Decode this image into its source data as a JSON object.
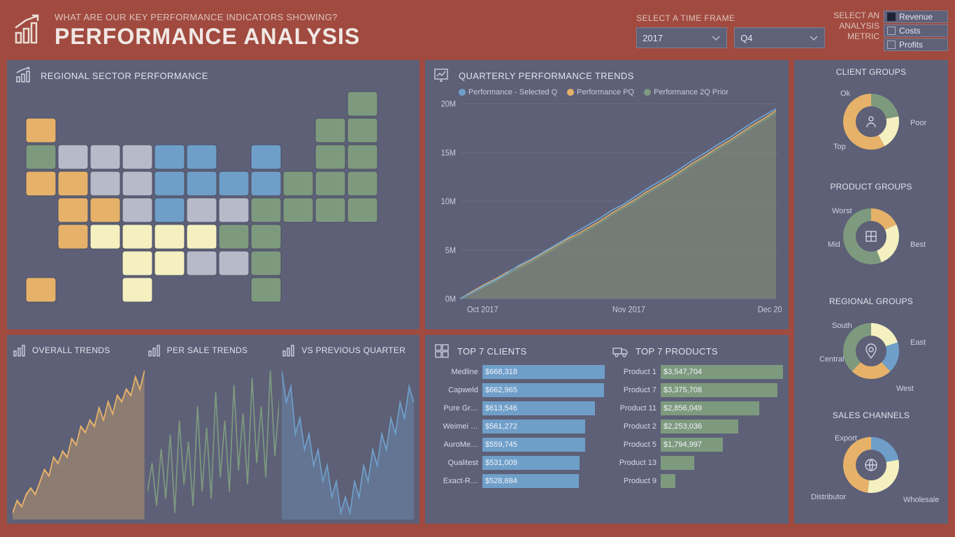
{
  "colors": {
    "page_bg": "#a14a3f",
    "panel_bg": "#5d6077",
    "text": "#e2e3ee",
    "blue": "#6f9fc9",
    "green": "#7d9a7e",
    "orange": "#e6b26a",
    "cream": "#f4f0c0",
    "gray": "#b7bac8"
  },
  "header": {
    "subtitle": "WHAT ARE OUR KEY PERFORMANCE INDICATORS SHOWING?",
    "title": "PERFORMANCE ANALYSIS",
    "timeframe_label": "SELECT A TIME FRAME",
    "year_value": "2017",
    "quarter_value": "Q4",
    "metric_label_l1": "SELECT AN",
    "metric_label_l2": "ANALYSIS",
    "metric_label_l3": "METRIC",
    "metrics": [
      {
        "label": "Revenue",
        "selected": true
      },
      {
        "label": "Costs",
        "selected": false
      },
      {
        "label": "Profits",
        "selected": false
      }
    ]
  },
  "map": {
    "title": "REGIONAL SECTOR PERFORMANCE",
    "fill_default": "#b7bac8",
    "states": {
      "blue": [
        "MN",
        "IA",
        "MO",
        "WI",
        "IL",
        "IN",
        "MI",
        "OH"
      ],
      "green": [
        "ME",
        "NH",
        "VT",
        "MA",
        "RI",
        "CT",
        "NY",
        "NJ",
        "PA",
        "DE",
        "MD",
        "VA",
        "NC",
        "SC",
        "GA",
        "FL",
        "OR"
      ],
      "orange": [
        "WA",
        "CA",
        "NV",
        "UT",
        "CO",
        "AZ",
        "AK"
      ],
      "cream": [
        "NM",
        "TX",
        "OK",
        "KS",
        "AR",
        "LA",
        "TN"
      ]
    }
  },
  "trends": {
    "title": "QUARTERLY PERFORMANCE TRENDS",
    "legend": [
      {
        "label": "Performance - Selected Q",
        "color": "#6f9fc9"
      },
      {
        "label": "Performance PQ",
        "color": "#e6b26a"
      },
      {
        "label": "Performance 2Q Prior",
        "color": "#7d9a7e"
      }
    ],
    "y_ticks": [
      "0M",
      "5M",
      "10M",
      "15M",
      "20M"
    ],
    "y_max": 20,
    "x_labels": [
      "Oct 2017",
      "Nov 2017",
      "Dec 2017"
    ],
    "series_selected": [
      0,
      0.6,
      1.3,
      1.9,
      2.6,
      3.4,
      4.0,
      4.7,
      5.4,
      6.1,
      6.9,
      7.6,
      8.3,
      9.1,
      9.7,
      10.5,
      11.3,
      12.0,
      12.7,
      13.5,
      14.3,
      15.0,
      15.8,
      16.5,
      17.3,
      18.1,
      18.8,
      19.5
    ],
    "series_pq": [
      0,
      0.7,
      1.4,
      2.0,
      2.7,
      3.3,
      3.9,
      4.6,
      5.3,
      6.0,
      6.6,
      7.3,
      8.0,
      8.8,
      9.5,
      10.2,
      11.0,
      11.7,
      12.4,
      13.2,
      14.0,
      14.7,
      15.5,
      16.2,
      17.0,
      17.8,
      18.5,
      19.3
    ],
    "series_2qp": [
      0,
      0.6,
      1.2,
      1.8,
      2.5,
      3.1,
      3.7,
      4.4,
      5.1,
      5.8,
      6.4,
      7.1,
      7.8,
      8.6,
      9.3,
      10.0,
      10.8,
      11.5,
      12.2,
      13.0,
      13.8,
      14.5,
      15.3,
      16.0,
      16.8,
      17.6,
      18.3,
      19.1
    ],
    "area_fill": "#889479",
    "area_opacity": 0.55
  },
  "donuts": [
    {
      "title": "CLIENT GROUPS",
      "icon": "people",
      "segments": [
        {
          "label": "Ok",
          "value": 22,
          "color": "#7d9a7e",
          "lx": -44,
          "ly": -46
        },
        {
          "label": "Top",
          "value": 20,
          "color": "#f4f0c0",
          "lx": -54,
          "ly": 30
        },
        {
          "label": "Poor",
          "value": 58,
          "color": "#e6b26a",
          "lx": 56,
          "ly": -4
        }
      ]
    },
    {
      "title": "PRODUCT GROUPS",
      "icon": "boxes",
      "segments": [
        {
          "label": "Worst",
          "value": 18,
          "color": "#e6b26a",
          "lx": -56,
          "ly": -42
        },
        {
          "label": "Mid",
          "value": 26,
          "color": "#f4f0c0",
          "lx": -62,
          "ly": 6
        },
        {
          "label": "Best",
          "value": 56,
          "color": "#7d9a7e",
          "lx": 56,
          "ly": 6
        }
      ]
    },
    {
      "title": "REGIONAL GROUPS",
      "icon": "pin",
      "segments": [
        {
          "label": "South",
          "value": 20,
          "color": "#f4f0c0",
          "lx": -56,
          "ly": -42
        },
        {
          "label": "Central",
          "value": 18,
          "color": "#6f9fc9",
          "lx": -74,
          "ly": 6
        },
        {
          "label": "West",
          "value": 24,
          "color": "#e6b26a",
          "lx": 36,
          "ly": 48
        },
        {
          "label": "East",
          "value": 38,
          "color": "#7d9a7e",
          "lx": 56,
          "ly": -18
        }
      ]
    },
    {
      "title": "SALES CHANNELS",
      "icon": "globe",
      "segments": [
        {
          "label": "Export",
          "value": 22,
          "color": "#6f9fc9",
          "lx": -52,
          "ly": -44
        },
        {
          "label": "Distributor",
          "value": 30,
          "color": "#f4f0c0",
          "lx": -86,
          "ly": 40
        },
        {
          "label": "Wholesale",
          "value": 48,
          "color": "#e6b26a",
          "lx": 46,
          "ly": 44
        }
      ]
    }
  ],
  "sparks": [
    {
      "title": "OVERALL TRENDS",
      "color": "#e6b26a",
      "style": "area",
      "data": [
        3,
        5,
        4,
        6,
        7,
        6,
        8,
        10,
        9,
        12,
        11,
        13,
        12,
        15,
        14,
        17,
        16,
        18,
        17,
        20,
        18,
        21,
        19,
        22,
        21,
        23,
        22,
        25,
        23,
        26
      ]
    },
    {
      "title": "PER SALE TRENDS",
      "color": "#7d9a7e",
      "style": "line",
      "data": [
        10,
        14,
        8,
        16,
        9,
        18,
        7,
        20,
        11,
        17,
        8,
        22,
        10,
        19,
        9,
        24,
        12,
        20,
        10,
        25,
        13,
        21,
        11,
        26,
        14,
        22,
        12,
        27,
        15,
        23
      ]
    },
    {
      "title": "VS PREVIOUS QUARTER",
      "color": "#6f9fc9",
      "style": "area",
      "data": [
        18,
        16,
        17,
        14,
        15,
        13,
        14,
        12,
        13,
        11,
        12,
        10,
        11,
        9,
        10,
        9,
        11,
        10,
        12,
        11,
        13,
        12,
        14,
        13,
        15,
        14,
        16,
        15,
        17,
        16
      ]
    }
  ],
  "top7_clients": {
    "title": "TOP 7 CLIENTS",
    "bar_color": "#6f9fc9",
    "max": 668318,
    "rows": [
      {
        "name": "Medline",
        "value": 668318,
        "label": "$668,318"
      },
      {
        "name": "Capweld",
        "value": 662965,
        "label": "$662,965"
      },
      {
        "name": "Pure Gr…",
        "value": 613546,
        "label": "$613,546"
      },
      {
        "name": "Weimei …",
        "value": 561272,
        "label": "$561,272"
      },
      {
        "name": "AuroMe…",
        "value": 559745,
        "label": "$559,745"
      },
      {
        "name": "Qualitest",
        "value": 531009,
        "label": "$531,009"
      },
      {
        "name": "Exact-R…",
        "value": 528684,
        "label": "$528,684"
      }
    ]
  },
  "top7_products": {
    "title": "TOP 7 PRODUCTS",
    "bar_color": "#7d9a7e",
    "max": 3547704,
    "rows": [
      {
        "name": "Product 1",
        "value": 3547704,
        "label": "$3,547,704"
      },
      {
        "name": "Product 7",
        "value": 3375708,
        "label": "$3,375,708"
      },
      {
        "name": "Product 11",
        "value": 2856049,
        "label": "$2,856,049"
      },
      {
        "name": "Product 2",
        "value": 2253036,
        "label": "$2,253,036"
      },
      {
        "name": "Product 5",
        "value": 1794997,
        "label": "$1,794,997"
      },
      {
        "name": "Product 13",
        "value": 970000,
        "label": ""
      },
      {
        "name": "Product 9",
        "value": 420000,
        "label": ""
      }
    ]
  }
}
